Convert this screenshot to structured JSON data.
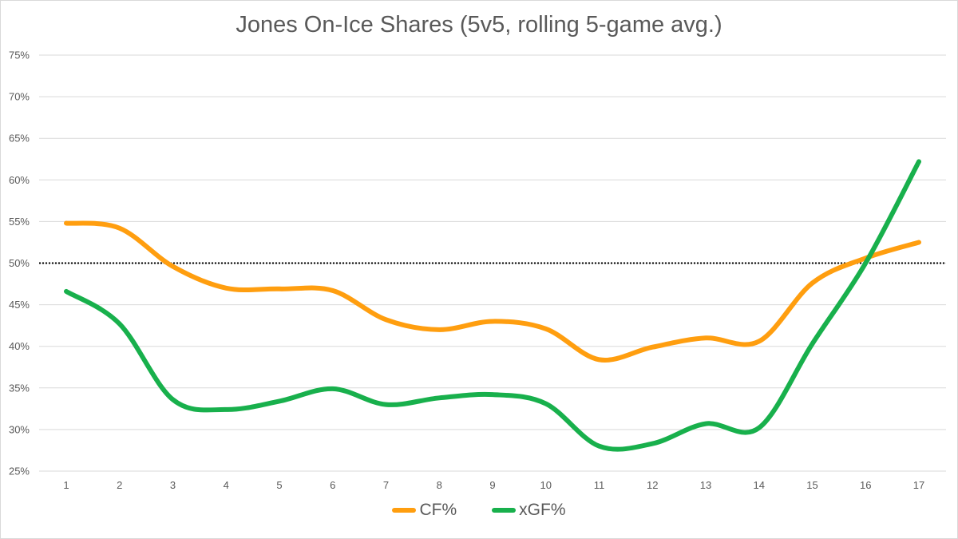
{
  "chart_data": {
    "type": "line",
    "title": "Jones On-Ice Shares (5v5, rolling 5-game avg.)",
    "x": [
      1,
      2,
      3,
      4,
      5,
      6,
      7,
      8,
      9,
      10,
      11,
      12,
      13,
      14,
      15,
      16,
      17
    ],
    "x_tick_labels": [
      "1",
      "2",
      "3",
      "4",
      "5",
      "6",
      "7",
      "8",
      "9",
      "10",
      "11",
      "12",
      "13",
      "14",
      "15",
      "16",
      "17"
    ],
    "ylim": [
      25,
      75
    ],
    "y_ticks": [
      25,
      30,
      35,
      40,
      45,
      50,
      55,
      60,
      65,
      70,
      75
    ],
    "y_tick_labels": [
      "25%",
      "30%",
      "35%",
      "40%",
      "45%",
      "50%",
      "55%",
      "60%",
      "65%",
      "70%",
      "75%"
    ],
    "grid": true,
    "reference_line": {
      "y": 50,
      "style": "dotted",
      "color": "#000000"
    },
    "legend_position": "bottom",
    "series": [
      {
        "name": "CF%",
        "color": "#FF9E0F",
        "values": [
          54.8,
          54.2,
          49.6,
          47.0,
          46.9,
          46.7,
          43.2,
          42.0,
          43.0,
          42.1,
          38.4,
          39.9,
          41.0,
          40.6,
          47.6,
          50.6,
          52.5
        ]
      },
      {
        "name": "xGF%",
        "color": "#18B04C",
        "values": [
          46.6,
          42.7,
          33.6,
          32.4,
          33.4,
          34.9,
          33.0,
          33.8,
          34.2,
          33.1,
          28.0,
          28.3,
          30.7,
          30.2,
          40.3,
          50.0,
          62.2
        ]
      }
    ]
  }
}
